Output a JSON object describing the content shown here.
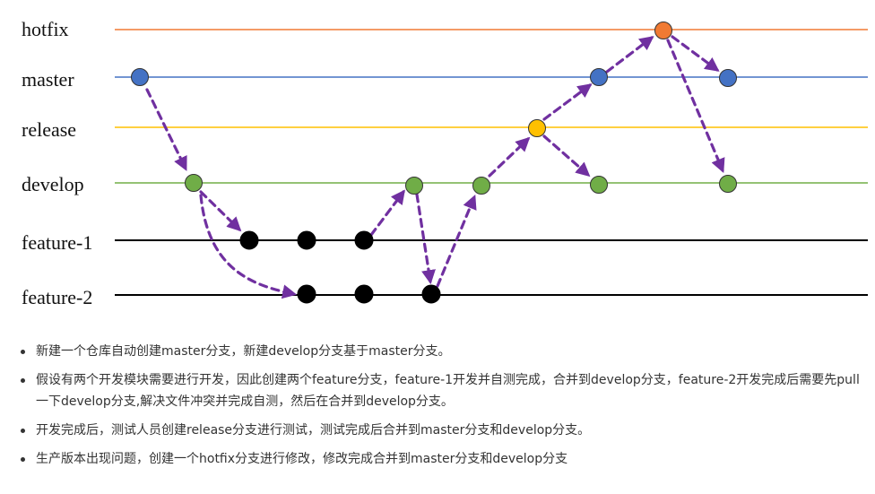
{
  "colors": {
    "hotfix": "#f07a33",
    "master": "#4472c4",
    "release": "#ffc000",
    "develop": "#70ad47",
    "feature": "#000000",
    "arrow": "#7030a0"
  },
  "branches": [
    {
      "key": "hotfix",
      "label": "hotfix"
    },
    {
      "key": "master",
      "label": "master"
    },
    {
      "key": "release",
      "label": "release"
    },
    {
      "key": "develop",
      "label": "develop"
    },
    {
      "key": "feature1",
      "label": "feature-1"
    },
    {
      "key": "feature2",
      "label": "feature-2"
    }
  ],
  "notes": [
    "新建一个仓库自动创建master分支，新建develop分支基于master分支。",
    "假设有两个开发模块需要进行开发，因此创建两个feature分支，feature-1开发并自测完成，合并到develop分支，feature-2开发完成后需要先pull一下develop分支,解决文件冲突并完成自测，然后在合并到develop分支。",
    "开发完成后，测试人员创建release分支进行测试，测试完成后合并到master分支和develop分支。",
    "生产版本出现问题，创建一个hotfix分支进行修改，修改完成合并到master分支和develop分支"
  ]
}
